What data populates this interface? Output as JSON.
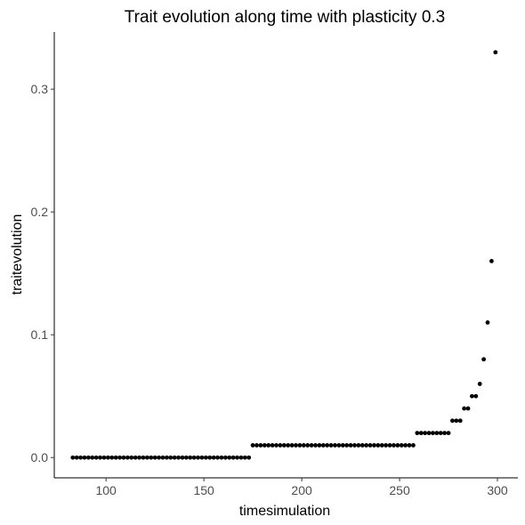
{
  "chart_data": {
    "type": "scatter",
    "title": "Trait evolution along time with plasticity 0.3",
    "xlabel": "timesimulation",
    "ylabel": "traitevolution",
    "xlim": [
      73.55,
      310.45
    ],
    "ylim": [
      -0.0165,
      0.3465
    ],
    "xticks": [
      100,
      150,
      200,
      250,
      300
    ],
    "yticks": [
      0.0,
      0.1,
      0.2,
      0.3
    ],
    "xtick_labels": [
      "100",
      "150",
      "200",
      "250",
      "300"
    ],
    "ytick_labels": [
      "0.0",
      "0.1",
      "0.2",
      "0.3"
    ],
    "grid": false,
    "legend": "none",
    "point_color": "#000000",
    "points": [
      [
        83,
        0
      ],
      [
        85,
        0
      ],
      [
        87,
        0
      ],
      [
        89,
        0
      ],
      [
        91,
        0
      ],
      [
        93,
        0
      ],
      [
        95,
        0
      ],
      [
        97,
        0
      ],
      [
        99,
        0
      ],
      [
        101,
        0
      ],
      [
        103,
        0
      ],
      [
        105,
        0
      ],
      [
        107,
        0
      ],
      [
        109,
        0
      ],
      [
        111,
        0
      ],
      [
        113,
        0
      ],
      [
        115,
        0
      ],
      [
        117,
        0
      ],
      [
        119,
        0
      ],
      [
        121,
        0
      ],
      [
        123,
        0
      ],
      [
        125,
        0
      ],
      [
        127,
        0
      ],
      [
        129,
        0
      ],
      [
        131,
        0
      ],
      [
        133,
        0
      ],
      [
        135,
        0
      ],
      [
        137,
        0
      ],
      [
        139,
        0
      ],
      [
        141,
        0
      ],
      [
        143,
        0
      ],
      [
        145,
        0
      ],
      [
        147,
        0
      ],
      [
        149,
        0
      ],
      [
        151,
        0
      ],
      [
        153,
        0
      ],
      [
        155,
        0
      ],
      [
        157,
        0
      ],
      [
        159,
        0
      ],
      [
        161,
        0
      ],
      [
        163,
        0
      ],
      [
        165,
        0
      ],
      [
        167,
        0
      ],
      [
        169,
        0
      ],
      [
        171,
        0
      ],
      [
        173,
        0
      ],
      [
        175,
        0.01
      ],
      [
        177,
        0.01
      ],
      [
        179,
        0.01
      ],
      [
        181,
        0.01
      ],
      [
        183,
        0.01
      ],
      [
        185,
        0.01
      ],
      [
        187,
        0.01
      ],
      [
        189,
        0.01
      ],
      [
        191,
        0.01
      ],
      [
        193,
        0.01
      ],
      [
        195,
        0.01
      ],
      [
        197,
        0.01
      ],
      [
        199,
        0.01
      ],
      [
        201,
        0.01
      ],
      [
        203,
        0.01
      ],
      [
        205,
        0.01
      ],
      [
        207,
        0.01
      ],
      [
        209,
        0.01
      ],
      [
        211,
        0.01
      ],
      [
        213,
        0.01
      ],
      [
        215,
        0.01
      ],
      [
        217,
        0.01
      ],
      [
        219,
        0.01
      ],
      [
        221,
        0.01
      ],
      [
        223,
        0.01
      ],
      [
        225,
        0.01
      ],
      [
        227,
        0.01
      ],
      [
        229,
        0.01
      ],
      [
        231,
        0.01
      ],
      [
        233,
        0.01
      ],
      [
        235,
        0.01
      ],
      [
        237,
        0.01
      ],
      [
        239,
        0.01
      ],
      [
        241,
        0.01
      ],
      [
        243,
        0.01
      ],
      [
        245,
        0.01
      ],
      [
        247,
        0.01
      ],
      [
        249,
        0.01
      ],
      [
        251,
        0.01
      ],
      [
        253,
        0.01
      ],
      [
        255,
        0.01
      ],
      [
        257,
        0.01
      ],
      [
        259,
        0.02
      ],
      [
        261,
        0.02
      ],
      [
        263,
        0.02
      ],
      [
        265,
        0.02
      ],
      [
        267,
        0.02
      ],
      [
        269,
        0.02
      ],
      [
        271,
        0.02
      ],
      [
        273,
        0.02
      ],
      [
        275,
        0.02
      ],
      [
        277,
        0.03
      ],
      [
        279,
        0.03
      ],
      [
        281,
        0.03
      ],
      [
        283,
        0.04
      ],
      [
        285,
        0.04
      ],
      [
        287,
        0.05
      ],
      [
        289,
        0.05
      ],
      [
        291,
        0.06
      ],
      [
        293,
        0.08
      ],
      [
        295,
        0.11
      ],
      [
        297,
        0.16
      ],
      [
        299,
        0.33
      ]
    ]
  }
}
